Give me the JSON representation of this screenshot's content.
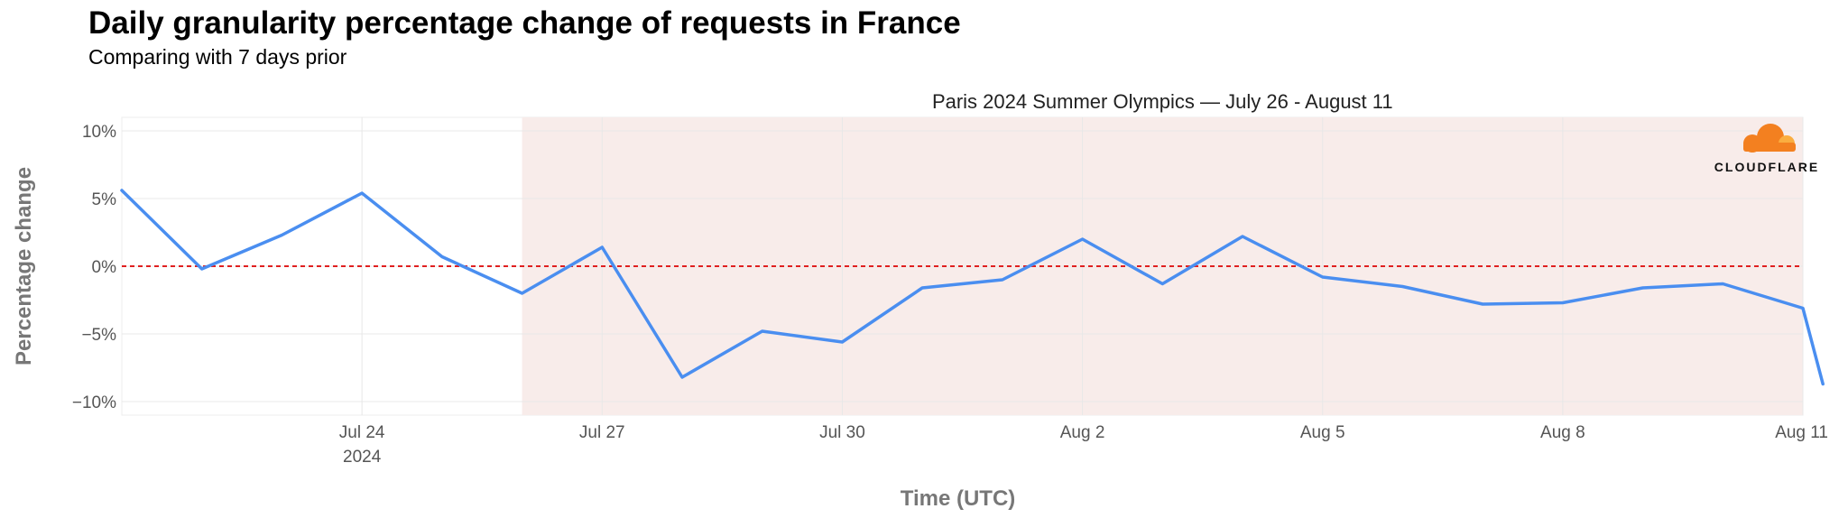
{
  "title": "Daily granularity percentage change of requests in France",
  "subtitle": "Comparing with 7 days prior",
  "logo": {
    "text": "CLOUDFLARE",
    "icon": "cloud-icon",
    "color": "#f38020"
  },
  "colors": {
    "line": "#4a8ef0",
    "zero_line": "#e02020",
    "highlight": "#f8ecea",
    "grid": "#e8e8e8"
  },
  "chart_data": {
    "type": "line",
    "xlabel": "Time (UTC)",
    "ylabel": "Percentage change",
    "x_range": [
      "2024-07-21",
      "2024-08-11"
    ],
    "ylim": [
      -11,
      11
    ],
    "grid": true,
    "y_ticks": [
      {
        "value": 10,
        "label": "10%"
      },
      {
        "value": 5,
        "label": "5%"
      },
      {
        "value": 0,
        "label": "0%"
      },
      {
        "value": -5,
        "label": "−5%"
      },
      {
        "value": -10,
        "label": "−10%"
      }
    ],
    "x_ticks": [
      {
        "date": "2024-07-24",
        "label": "Jul 24",
        "sublabel": "2024"
      },
      {
        "date": "2024-07-27",
        "label": "Jul 27"
      },
      {
        "date": "2024-07-30",
        "label": "Jul 30"
      },
      {
        "date": "2024-08-02",
        "label": "Aug 2"
      },
      {
        "date": "2024-08-05",
        "label": "Aug 5"
      },
      {
        "date": "2024-08-08",
        "label": "Aug 8"
      },
      {
        "date": "2024-08-11",
        "label": "Aug 11"
      }
    ],
    "highlight": {
      "start": "2024-07-26",
      "end": "2024-08-11",
      "label": "Paris 2024 Summer Olympics — July 26 - August 11"
    },
    "reference_line": {
      "y": 0,
      "style": "dashed"
    },
    "series": [
      {
        "points": [
          {
            "x": "2024-07-21",
            "y": 5.6
          },
          {
            "x": "2024-07-22",
            "y": -0.2
          },
          {
            "x": "2024-07-23",
            "y": 2.3
          },
          {
            "x": "2024-07-24",
            "y": 5.4
          },
          {
            "x": "2024-07-25",
            "y": 0.7
          },
          {
            "x": "2024-07-26",
            "y": -2.0
          },
          {
            "x": "2024-07-27",
            "y": 1.4
          },
          {
            "x": "2024-07-28",
            "y": -8.2
          },
          {
            "x": "2024-07-29",
            "y": -4.8
          },
          {
            "x": "2024-07-30",
            "y": -5.6
          },
          {
            "x": "2024-07-31",
            "y": -1.6
          },
          {
            "x": "2024-08-01",
            "y": -1.0
          },
          {
            "x": "2024-08-02",
            "y": 2.0
          },
          {
            "x": "2024-08-03",
            "y": -1.3
          },
          {
            "x": "2024-08-04",
            "y": 2.2
          },
          {
            "x": "2024-08-05",
            "y": -0.8
          },
          {
            "x": "2024-08-06",
            "y": -1.5
          },
          {
            "x": "2024-08-07",
            "y": -2.8
          },
          {
            "x": "2024-08-08",
            "y": -2.7
          },
          {
            "x": "2024-08-09",
            "y": -1.6
          },
          {
            "x": "2024-08-10",
            "y": -1.3
          },
          {
            "x": "2024-08-11",
            "y": -3.1
          },
          {
            "x": "2024-08-11T06:00",
            "y": -8.7
          }
        ]
      }
    ]
  }
}
